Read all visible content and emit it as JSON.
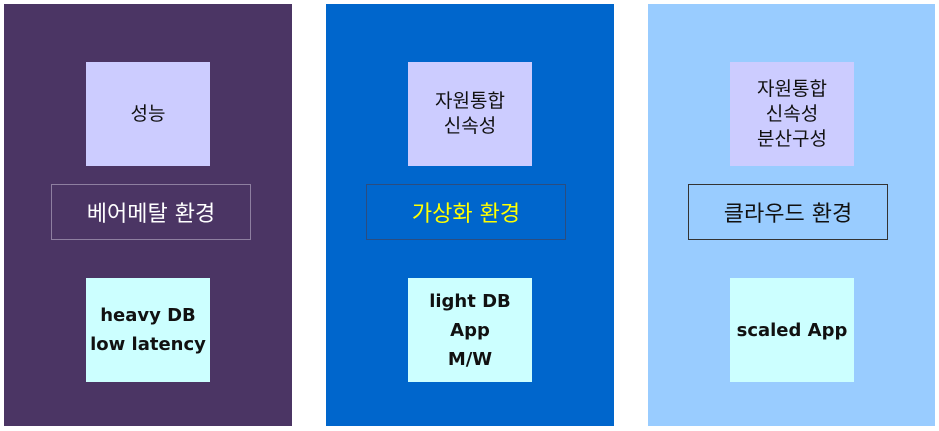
{
  "panels": [
    {
      "top": [
        "성능"
      ],
      "env": "베어메탈 환경",
      "bottom": [
        "heavy DB",
        "low latency"
      ]
    },
    {
      "top": [
        "자원통합",
        "신속성"
      ],
      "env": "가상화 환경",
      "bottom": [
        "light DB",
        "App",
        "M/W"
      ]
    },
    {
      "top": [
        "자원통합",
        "신속성",
        "분산구성"
      ],
      "env": "클라우드 환경",
      "bottom": [
        "scaled App"
      ]
    }
  ],
  "colors": {
    "baremetal_bg": "#4b3564",
    "virtual_bg": "#0066cc",
    "cloud_bg": "#99ccff",
    "top_box": "#ccccff",
    "bottom_box": "#ccffff",
    "virtual_label": "#ffff00"
  }
}
